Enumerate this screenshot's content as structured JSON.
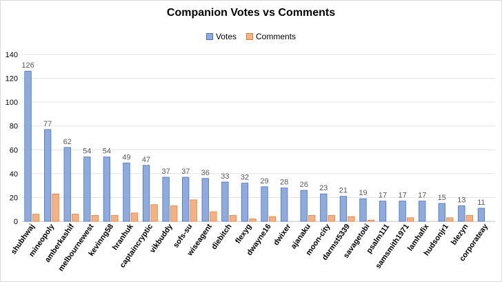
{
  "chart_data": {
    "type": "bar",
    "title": "Companion Votes vs Comments",
    "xlabel": "",
    "ylabel": "",
    "ylim": [
      0,
      140
    ],
    "yticks": [
      0,
      20,
      40,
      60,
      80,
      100,
      120,
      140
    ],
    "grid": true,
    "legend_position": "top-center",
    "categories": [
      "shubhwaj",
      "mineopoly",
      "amberkashif",
      "melbournewest",
      "kevinng58",
      "hranhuk",
      "captaincryptic",
      "vikbuddy",
      "sofs-su",
      "wiseagent",
      "diebitch",
      "flexyg",
      "dwayne16",
      "dwixer",
      "ajanaku",
      "moon-city",
      "darmst5339",
      "savagetobi",
      "psalm111",
      "samsmith1971",
      "lamhafix",
      "hudsonjr1",
      "blezyn",
      "corporateay"
    ],
    "series": [
      {
        "name": "Votes",
        "color": "#8faadc",
        "stroke": "#4472c4",
        "values": [
          126,
          77,
          62,
          54,
          54,
          49,
          47,
          37,
          37,
          36,
          33,
          32,
          29,
          28,
          26,
          23,
          21,
          19,
          17,
          17,
          17,
          15,
          13,
          11
        ],
        "data_labels": true
      },
      {
        "name": "Comments",
        "color": "#f4b183",
        "stroke": "#ed7d31",
        "values": [
          6,
          23,
          6,
          5,
          5,
          7,
          14,
          13,
          18,
          8,
          5,
          2,
          4,
          0,
          5,
          5,
          4,
          1,
          0,
          3,
          0,
          3,
          5,
          0
        ],
        "data_labels": false
      }
    ]
  }
}
